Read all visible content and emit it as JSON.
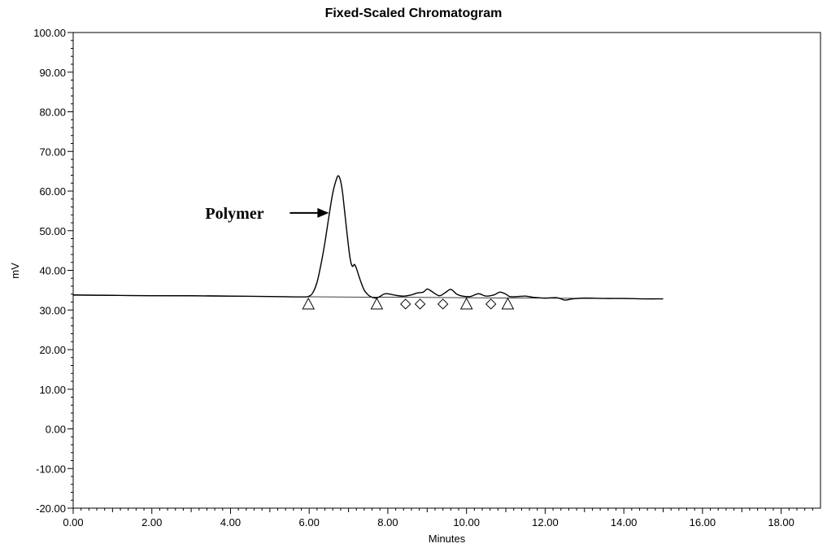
{
  "chart_data": {
    "type": "line",
    "title": "Fixed-Scaled Chromatogram",
    "xlabel": "Minutes",
    "ylabel": "mV",
    "xlim": [
      0,
      19
    ],
    "ylim": [
      -20,
      100
    ],
    "x_ticks": [
      0,
      2,
      4,
      6,
      8,
      10,
      12,
      14,
      16,
      18
    ],
    "x_tick_labels": [
      "0.00",
      "2.00",
      "4.00",
      "6.00",
      "8.00",
      "10.00",
      "12.00",
      "14.00",
      "16.00",
      "18.00"
    ],
    "y_ticks": [
      -20,
      -10,
      0,
      10,
      20,
      30,
      40,
      50,
      60,
      70,
      80,
      90,
      100
    ],
    "y_tick_labels": [
      "-20.00",
      "-10.00",
      "0.00",
      "10.00",
      "20.00",
      "30.00",
      "40.00",
      "50.00",
      "60.00",
      "70.00",
      "80.00",
      "90.00",
      "100.00"
    ],
    "grid": false,
    "series": [
      {
        "x": [
          0.0,
          1.0,
          2.0,
          3.0,
          4.0,
          5.0,
          5.8,
          6.0,
          6.1,
          6.2,
          6.3,
          6.4,
          6.5,
          6.6,
          6.7,
          6.75,
          6.8,
          6.85,
          6.9,
          7.0,
          7.05,
          7.1,
          7.15,
          7.2,
          7.3,
          7.4,
          7.5,
          7.6,
          7.7,
          7.8,
          7.9,
          8.0,
          8.2,
          8.4,
          8.6,
          8.75,
          8.9,
          9.0,
          9.1,
          9.3,
          9.45,
          9.6,
          9.75,
          9.9,
          10.1,
          10.3,
          10.5,
          10.7,
          10.85,
          11.0,
          11.1,
          11.3,
          11.5,
          11.7,
          12.0,
          12.3,
          12.5,
          12.7,
          13.0,
          13.5,
          14.0,
          14.5,
          15.0
        ],
        "y": [
          33.8,
          33.7,
          33.6,
          33.6,
          33.5,
          33.4,
          33.3,
          33.5,
          34.5,
          37.0,
          41.5,
          47.0,
          53.5,
          59.5,
          63.2,
          63.8,
          62.5,
          59.5,
          55.0,
          46.0,
          42.5,
          41.0,
          41.5,
          40.5,
          37.5,
          35.0,
          33.8,
          33.2,
          33.0,
          33.4,
          34.0,
          34.1,
          33.7,
          33.5,
          33.8,
          34.3,
          34.5,
          35.3,
          34.8,
          33.6,
          34.3,
          35.2,
          34.0,
          33.5,
          33.4,
          34.1,
          33.5,
          33.8,
          34.5,
          34.0,
          33.4,
          33.4,
          33.5,
          33.2,
          33.0,
          33.1,
          32.5,
          32.8,
          33.0,
          32.9,
          32.9,
          32.8,
          32.8
        ]
      }
    ],
    "baseline": {
      "x": [
        0.0,
        15.0
      ],
      "y": [
        33.7,
        32.8
      ]
    },
    "markers": {
      "triangle": [
        5.98,
        7.72,
        10.0,
        11.05
      ],
      "diamond": [
        8.45,
        8.82,
        9.4,
        10.62
      ],
      "y": 31.5
    },
    "annotations": [
      {
        "text": "Polymer",
        "arrow_to_x": 6.5,
        "arrow_to_y": 54.5
      }
    ]
  }
}
